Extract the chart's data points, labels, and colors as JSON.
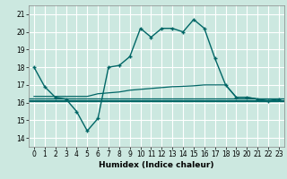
{
  "xlabel": "Humidex (Indice chaleur)",
  "bg_color": "#cce8e0",
  "grid_color": "#ffffff",
  "line_color": "#006666",
  "xlim": [
    -0.5,
    23.5
  ],
  "ylim": [
    13.5,
    21.5
  ],
  "yticks": [
    14,
    15,
    16,
    17,
    18,
    19,
    20,
    21
  ],
  "xticks": [
    0,
    1,
    2,
    3,
    4,
    5,
    6,
    7,
    8,
    9,
    10,
    11,
    12,
    13,
    14,
    15,
    16,
    17,
    18,
    19,
    20,
    21,
    22,
    23
  ],
  "main_line_x": [
    0,
    1,
    2,
    3,
    4,
    5,
    6,
    7,
    8,
    9,
    10,
    11,
    12,
    13,
    14,
    15,
    16,
    17,
    18,
    19,
    20,
    21,
    22,
    23
  ],
  "main_line_y": [
    18.0,
    16.9,
    16.3,
    16.2,
    15.5,
    14.4,
    15.1,
    18.0,
    18.1,
    18.6,
    20.2,
    19.7,
    20.2,
    20.2,
    20.0,
    20.7,
    20.2,
    18.5,
    17.0,
    16.3,
    16.3,
    16.2,
    16.1,
    16.2
  ],
  "flat_line_y": 16.15,
  "rising_line_x": [
    0,
    1,
    2,
    3,
    4,
    5,
    6,
    7,
    8,
    9,
    10,
    11,
    12,
    13,
    14,
    15,
    16,
    17,
    18,
    19,
    20,
    21,
    22,
    23
  ],
  "rising_line_y": [
    16.35,
    16.35,
    16.35,
    16.35,
    16.35,
    16.35,
    16.5,
    16.55,
    16.6,
    16.7,
    16.75,
    16.8,
    16.85,
    16.9,
    16.92,
    16.95,
    17.0,
    17.0,
    17.0,
    16.3,
    16.3,
    16.2,
    16.2,
    16.2
  ],
  "flat2_line_y": 16.25,
  "flat3_line_y": 16.1
}
